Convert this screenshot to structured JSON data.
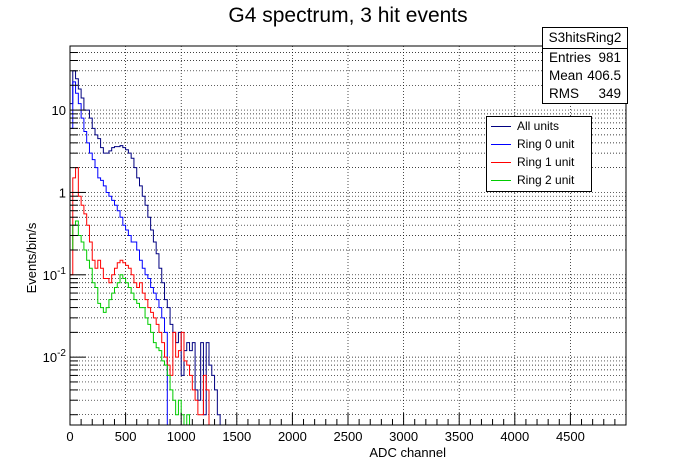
{
  "chart_data": {
    "type": "step-histogram",
    "title": "G4 spectrum, 3 hit events",
    "xlabel": "ADC channel",
    "ylabel": "Events/bin/s",
    "xlim": [
      0,
      5000
    ],
    "ylim": [
      0.0015,
      60
    ],
    "yscale": "log",
    "grid": true,
    "bin_width": 25,
    "x_ticks": [
      "0",
      "500",
      "1000",
      "1500",
      "2000",
      "2500",
      "3000",
      "3500",
      "4000",
      "4500"
    ],
    "y_ticks": [
      "10",
      "1",
      "10^-1",
      "10^-2"
    ],
    "stats": {
      "name": "S3hitsRing2",
      "entries_label": "Entries",
      "entries": "981",
      "mean_label": "Mean",
      "mean": "406.5",
      "rms_label": "RMS",
      "rms": "349"
    },
    "series": [
      {
        "name": "All units",
        "color": "#000080",
        "x_start": 0,
        "values": [
          12,
          30,
          24,
          18,
          14,
          10,
          10,
          8,
          6,
          5,
          4.5,
          3.5,
          3,
          3,
          3.2,
          3.5,
          3.6,
          3.6,
          3.7,
          3.5,
          3.3,
          3,
          2.6,
          2,
          1.5,
          1.2,
          0.9,
          0.7,
          0.5,
          0.35,
          0.25,
          0.18,
          0.12,
          0.08,
          0.05,
          0.04,
          0.025,
          0.02,
          0.015,
          0.02,
          0.006,
          0.012,
          0.015,
          0.012,
          0.015,
          0.004,
          0.003,
          0.015,
          0.002,
          0.015,
          0.008,
          0.006,
          0.004,
          0.002
        ]
      },
      {
        "name": "Ring 0 unit",
        "color": "#0000ff",
        "x_start": 0,
        "values": [
          6,
          22,
          16,
          12,
          8,
          5.5,
          4,
          3,
          2.5,
          2,
          1.5,
          1.4,
          1.2,
          1.0,
          0.9,
          0.8,
          0.7,
          0.6,
          0.5,
          0.4,
          0.35,
          0.3,
          0.25,
          0.25,
          0.2,
          0.15,
          0.12,
          0.1,
          0.09,
          0.07,
          0.06,
          0.05,
          0.04,
          0.03,
          0.02
        ]
      },
      {
        "name": "Ring 1 unit",
        "color": "#ff0000",
        "x_start": 0,
        "values": [
          0.1,
          1.5,
          2.0,
          0.9,
          0.7,
          0.55,
          0.4,
          0.25,
          0.15,
          0.12,
          0.15,
          0.12,
          0.09,
          0.09,
          0.08,
          0.1,
          0.12,
          0.14,
          0.15,
          0.14,
          0.13,
          0.12,
          0.1,
          0.08,
          0.07,
          0.08,
          0.06,
          0.05,
          0.04,
          0.035,
          0.03,
          0.025,
          0.02,
          0.015,
          0.01,
          0.008,
          0.006,
          0.02,
          0.01,
          0.012,
          0.02,
          0.009,
          0.008,
          0.006,
          0.004,
          0.003,
          0.002,
          0.002,
          0.006,
          0.004
        ]
      },
      {
        "name": "Ring 2 unit",
        "color": "#00cc00",
        "x_start": 0,
        "values": [
          0.2,
          0.4,
          0.45,
          0.3,
          0.25,
          0.2,
          0.15,
          0.12,
          0.08,
          0.07,
          0.045,
          0.04,
          0.035,
          0.04,
          0.05,
          0.06,
          0.07,
          0.08,
          0.1,
          0.09,
          0.08,
          0.07,
          0.06,
          0.05,
          0.045,
          0.04,
          0.04,
          0.03,
          0.025,
          0.02,
          0.015,
          0.013,
          0.012,
          0.009,
          0.008,
          0.006,
          0.004,
          0.003,
          0.002,
          0.003,
          0.002,
          0.001,
          0.002,
          0.001
        ]
      }
    ]
  }
}
